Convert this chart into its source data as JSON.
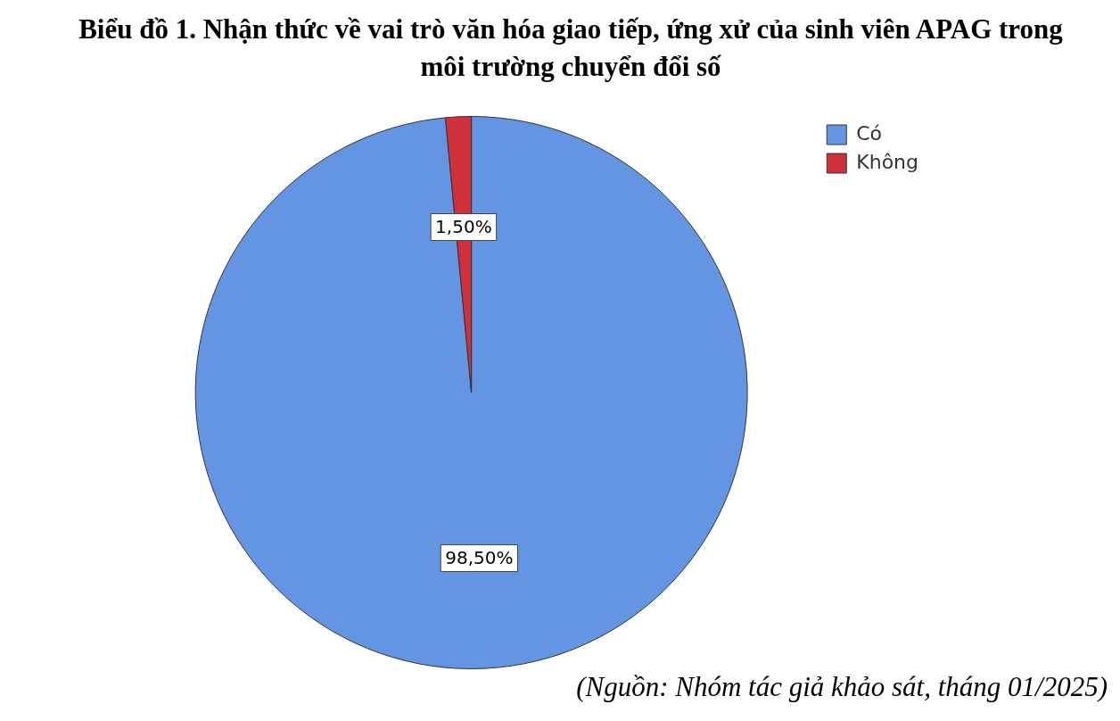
{
  "chart_data": {
    "type": "pie",
    "title": "Biểu đồ 1. Nhận thức về vai trò văn hóa giao tiếp, ứng xử của sinh viên APAG trong môi trường chuyển đổi số",
    "categories": [
      "Có",
      "Không"
    ],
    "values": [
      98.5,
      1.5
    ],
    "value_labels": [
      "98,50%",
      "1,50%"
    ],
    "colors": [
      "#6495e2",
      "#d0303a"
    ],
    "legend": "top right",
    "annotations": [
      "(Nguồn: Nhóm tác giả khảo sát, tháng 01/2025)"
    ]
  }
}
